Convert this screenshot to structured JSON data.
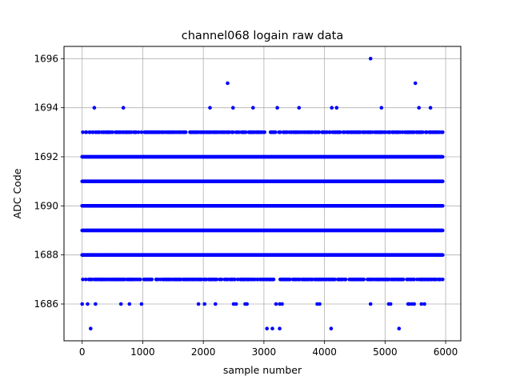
{
  "chart_data": {
    "type": "scatter",
    "title": "channel068 logain raw data",
    "xlabel": "sample number",
    "ylabel": "ADC Code",
    "xlim": [
      -300,
      6250
    ],
    "ylim": [
      1684.5,
      1696.5
    ],
    "xticks": [
      0,
      1000,
      2000,
      3000,
      4000,
      5000,
      6000
    ],
    "yticks": [
      1686,
      1688,
      1690,
      1692,
      1694,
      1696
    ],
    "grid": true,
    "marker_color": "#0000ff",
    "num_samples": 5950,
    "series": [
      {
        "values_by_level": {
          "1696": [
            4760
          ],
          "1695": [
            2400,
            5500
          ],
          "1694": [
            200,
            680,
            2110,
            2490,
            2820,
            3220,
            3580,
            4120,
            4200,
            4940,
            5560,
            5750
          ],
          "1693": [],
          "1692": [],
          "1691": [],
          "1690": [],
          "1689": [],
          "1688": [],
          "1687": [],
          "1686": [
            0,
            90,
            220,
            640,
            780,
            980,
            1920,
            2020,
            2200,
            2500,
            2540,
            2690,
            2720,
            3200,
            3260,
            3300,
            3880,
            3920,
            4760,
            5060,
            5090,
            5380,
            5400,
            5440,
            5480,
            5600,
            5650
          ],
          "1685": [
            140,
            3050,
            3140,
            3260,
            4110,
            5230
          ]
        },
        "dense_levels": [
          1688,
          1689,
          1690,
          1691,
          1692
        ],
        "sparse_dense_levels": [
          1687,
          1693
        ]
      }
    ]
  }
}
